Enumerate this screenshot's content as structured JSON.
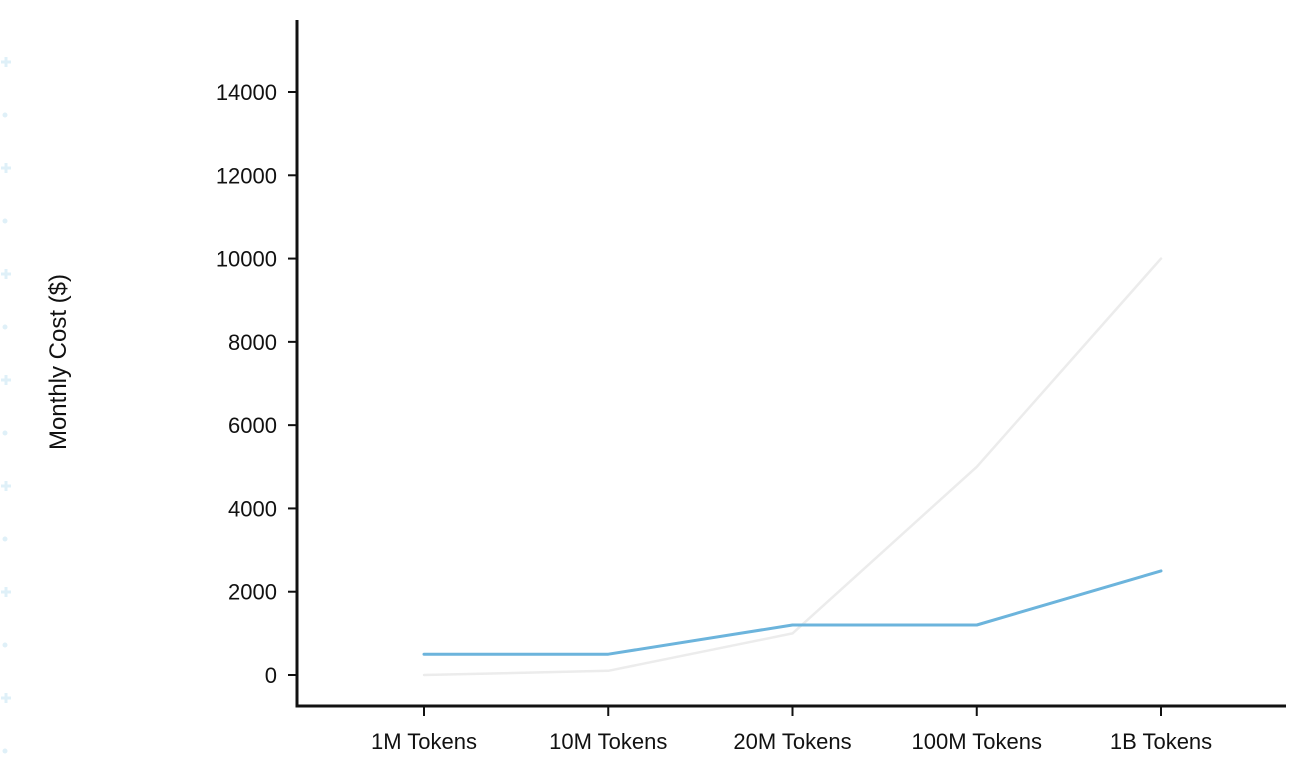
{
  "chart_data": {
    "type": "line",
    "categories": [
      "1M Tokens",
      "10M Tokens",
      "20M Tokens",
      "100M Tokens",
      "1B Tokens"
    ],
    "series": [
      {
        "values": [
          500,
          500,
          1200,
          1200,
          2500
        ],
        "color": "#6cb4dc"
      },
      {
        "values": [
          0,
          100,
          1000,
          5000,
          10000
        ],
        "color": "#ececec"
      }
    ],
    "ylabel": "Monthly Cost ($)",
    "xlabel": "",
    "yticks": [
      0,
      2000,
      4000,
      6000,
      8000,
      10000,
      12000,
      14000
    ],
    "ylim": [
      -700,
      15700
    ],
    "grid": false
  }
}
